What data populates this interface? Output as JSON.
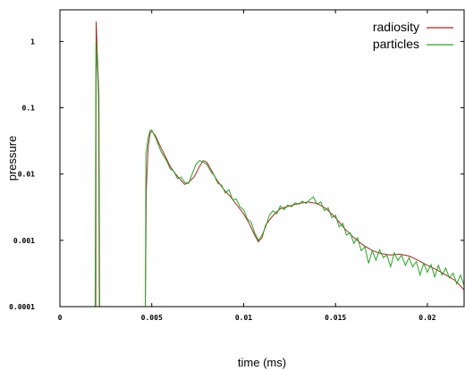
{
  "chart_data": {
    "type": "line",
    "title": "",
    "xlabel": "time (ms)",
    "ylabel": "pressure",
    "xlim": [
      0,
      0.022
    ],
    "ylim": [
      0.0001,
      3
    ],
    "yscale": "log",
    "grid": false,
    "legend_position": "top-right",
    "x_ticks": [
      {
        "value": 0,
        "label": "0"
      },
      {
        "value": 0.005,
        "label": "0.005"
      },
      {
        "value": 0.01,
        "label": "0.01"
      },
      {
        "value": 0.015,
        "label": "0.015"
      },
      {
        "value": 0.02,
        "label": "0.02"
      }
    ],
    "y_ticks": [
      {
        "value": 0.0001,
        "label": "0.0001"
      },
      {
        "value": 0.001,
        "label": "0.001"
      },
      {
        "value": 0.01,
        "label": "0.01"
      },
      {
        "value": 0.1,
        "label": "0.1"
      },
      {
        "value": 1,
        "label": "1"
      }
    ],
    "series": [
      {
        "name": "radiosity",
        "color": "#b22222",
        "points": [
          [
            0.00195,
            0.0001
          ],
          [
            0.00197,
            2.0
          ],
          [
            0.00205,
            0.5
          ],
          [
            0.00212,
            0.15
          ],
          [
            0.00216,
            0.0001
          ],
          [
            0.00465,
            0.0001
          ],
          [
            0.0047,
            0.006
          ],
          [
            0.0048,
            0.025
          ],
          [
            0.0049,
            0.04
          ],
          [
            0.005,
            0.045
          ],
          [
            0.0052,
            0.038
          ],
          [
            0.0055,
            0.025
          ],
          [
            0.0058,
            0.017
          ],
          [
            0.006,
            0.013
          ],
          [
            0.0063,
            0.01
          ],
          [
            0.0066,
            0.008
          ],
          [
            0.0068,
            0.007
          ],
          [
            0.007,
            0.0075
          ],
          [
            0.0073,
            0.009
          ],
          [
            0.0076,
            0.013
          ],
          [
            0.0078,
            0.016
          ],
          [
            0.008,
            0.015
          ],
          [
            0.0082,
            0.012
          ],
          [
            0.0085,
            0.0085
          ],
          [
            0.0088,
            0.0065
          ],
          [
            0.009,
            0.0055
          ],
          [
            0.0093,
            0.0045
          ],
          [
            0.0096,
            0.0035
          ],
          [
            0.01,
            0.0025
          ],
          [
            0.0103,
            0.0018
          ],
          [
            0.0106,
            0.0012
          ],
          [
            0.0108,
            0.00095
          ],
          [
            0.011,
            0.0011
          ],
          [
            0.0112,
            0.0017
          ],
          [
            0.0115,
            0.0022
          ],
          [
            0.0118,
            0.0027
          ],
          [
            0.012,
            0.003
          ],
          [
            0.0125,
            0.0033
          ],
          [
            0.013,
            0.0036
          ],
          [
            0.0135,
            0.0038
          ],
          [
            0.014,
            0.0036
          ],
          [
            0.0145,
            0.003
          ],
          [
            0.015,
            0.0022
          ],
          [
            0.0155,
            0.0015
          ],
          [
            0.016,
            0.0011
          ],
          [
            0.0165,
            0.00085
          ],
          [
            0.017,
            0.0007
          ],
          [
            0.0175,
            0.00063
          ],
          [
            0.018,
            0.0006
          ],
          [
            0.0185,
            0.00062
          ],
          [
            0.019,
            0.00058
          ],
          [
            0.0195,
            0.0005
          ],
          [
            0.02,
            0.00042
          ],
          [
            0.0205,
            0.00036
          ],
          [
            0.021,
            0.0003
          ],
          [
            0.0215,
            0.00025
          ],
          [
            0.022,
            0.00018
          ]
        ]
      },
      {
        "name": "particles",
        "color": "#22a822",
        "points": [
          [
            0.00192,
            0.0001
          ],
          [
            0.00196,
            1.0
          ],
          [
            0.002,
            0.6
          ],
          [
            0.00205,
            0.35
          ],
          [
            0.0021,
            0.15
          ],
          [
            0.00214,
            0.0001
          ],
          [
            0.00465,
            0.0001
          ],
          [
            0.00468,
            0.02
          ],
          [
            0.0048,
            0.035
          ],
          [
            0.0049,
            0.045
          ],
          [
            0.005,
            0.046
          ],
          [
            0.0052,
            0.036
          ],
          [
            0.0055,
            0.022
          ],
          [
            0.0058,
            0.016
          ],
          [
            0.006,
            0.012
          ],
          [
            0.0062,
            0.011
          ],
          [
            0.0064,
            0.0085
          ],
          [
            0.0066,
            0.009
          ],
          [
            0.0068,
            0.0075
          ],
          [
            0.007,
            0.0072
          ],
          [
            0.0072,
            0.01
          ],
          [
            0.0074,
            0.014
          ],
          [
            0.0076,
            0.016
          ],
          [
            0.0078,
            0.015
          ],
          [
            0.008,
            0.014
          ],
          [
            0.0082,
            0.011
          ],
          [
            0.0084,
            0.0095
          ],
          [
            0.0086,
            0.0072
          ],
          [
            0.0088,
            0.0068
          ],
          [
            0.009,
            0.0052
          ],
          [
            0.0092,
            0.0058
          ],
          [
            0.0094,
            0.0041
          ],
          [
            0.0096,
            0.0042
          ],
          [
            0.0098,
            0.0032
          ],
          [
            0.01,
            0.0029
          ],
          [
            0.0102,
            0.0021
          ],
          [
            0.0104,
            0.0019
          ],
          [
            0.0106,
            0.0013
          ],
          [
            0.0108,
            0.001
          ],
          [
            0.011,
            0.0012
          ],
          [
            0.0112,
            0.0016
          ],
          [
            0.0114,
            0.0024
          ],
          [
            0.0116,
            0.0028
          ],
          [
            0.0118,
            0.0025
          ],
          [
            0.012,
            0.0033
          ],
          [
            0.0122,
            0.0029
          ],
          [
            0.0124,
            0.0034
          ],
          [
            0.0126,
            0.0032
          ],
          [
            0.0128,
            0.0037
          ],
          [
            0.013,
            0.0035
          ],
          [
            0.0132,
            0.0039
          ],
          [
            0.0134,
            0.0036
          ],
          [
            0.0136,
            0.0041
          ],
          [
            0.0138,
            0.0045
          ],
          [
            0.014,
            0.0035
          ],
          [
            0.0142,
            0.0038
          ],
          [
            0.0144,
            0.0028
          ],
          [
            0.0146,
            0.0031
          ],
          [
            0.0148,
            0.0022
          ],
          [
            0.015,
            0.0024
          ],
          [
            0.0152,
            0.0016
          ],
          [
            0.0154,
            0.0018
          ],
          [
            0.0156,
            0.0012
          ],
          [
            0.0158,
            0.0013
          ],
          [
            0.016,
            0.0009
          ],
          [
            0.0162,
            0.0011
          ],
          [
            0.0164,
            0.0007
          ],
          [
            0.0166,
            0.0008
          ],
          [
            0.0168,
            0.00045
          ],
          [
            0.017,
            0.0007
          ],
          [
            0.0172,
            0.0005
          ],
          [
            0.0174,
            0.00072
          ],
          [
            0.0176,
            0.00055
          ],
          [
            0.0178,
            0.0006
          ],
          [
            0.018,
            0.0004
          ],
          [
            0.0182,
            0.00065
          ],
          [
            0.0184,
            0.0005
          ],
          [
            0.0186,
            0.0006
          ],
          [
            0.0188,
            0.00042
          ],
          [
            0.019,
            0.00055
          ],
          [
            0.0192,
            0.0004
          ],
          [
            0.0194,
            0.00048
          ],
          [
            0.0196,
            0.0003
          ],
          [
            0.0198,
            0.00045
          ],
          [
            0.02,
            0.00033
          ],
          [
            0.0202,
            0.00043
          ],
          [
            0.0204,
            0.00028
          ],
          [
            0.0206,
            0.00042
          ],
          [
            0.0208,
            0.0003
          ],
          [
            0.021,
            0.00038
          ],
          [
            0.0212,
            0.00027
          ],
          [
            0.0214,
            0.00032
          ],
          [
            0.0216,
            0.00022
          ],
          [
            0.0218,
            0.0003
          ],
          [
            0.022,
            0.00021
          ]
        ]
      }
    ]
  }
}
